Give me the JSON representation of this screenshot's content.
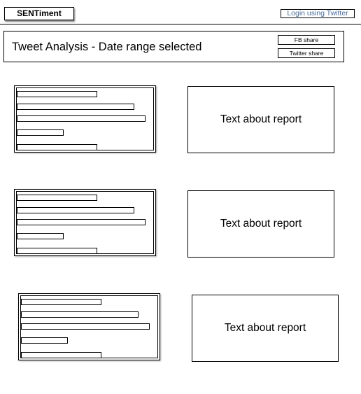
{
  "app": {
    "logo": "SENTiment",
    "login_label": "Login using Twitter"
  },
  "header": {
    "title": "Tweet Analysis - Date range selected",
    "fb_share_label": "FB share",
    "twitter_share_label": "Twitter share"
  },
  "rows": [
    {
      "chart": {
        "type": "bar",
        "orientation": "horizontal",
        "values": [
          115,
          168,
          184,
          67,
          115
        ]
      },
      "report_text": "Text about report"
    },
    {
      "chart": {
        "type": "bar",
        "orientation": "horizontal",
        "values": [
          115,
          168,
          184,
          67,
          115
        ]
      },
      "report_text": "Text about report"
    },
    {
      "chart": {
        "type": "bar",
        "orientation": "horizontal",
        "values": [
          115,
          168,
          184,
          67,
          115
        ]
      },
      "report_text": "Text about report"
    }
  ]
}
